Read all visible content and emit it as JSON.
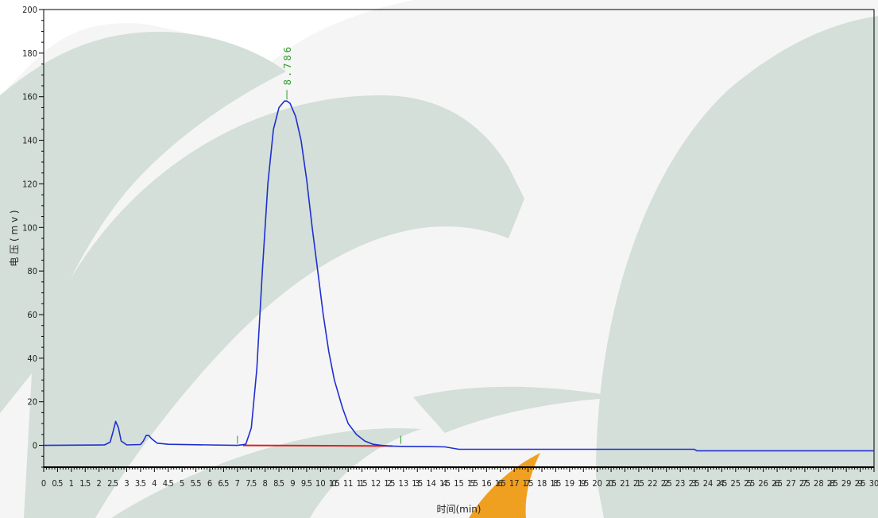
{
  "chart_data": {
    "type": "line",
    "title": "",
    "xlabel": "时间(min)",
    "ylabel": "电 压 ( m v )",
    "xlim": [
      0,
      30
    ],
    "ylim": [
      -10,
      200
    ],
    "x_ticks": [
      "0",
      "0.5",
      "1",
      "1.5",
      "2",
      "2.5",
      "3",
      "3.5",
      "4",
      "4.5",
      "5",
      "5.5",
      "6",
      "6.5",
      "7",
      "7.5",
      "8",
      "8.5",
      "9",
      "9.5",
      "10",
      "10.5",
      "11",
      "11.5",
      "12",
      "12.5",
      "13",
      "13.5",
      "14",
      "14.5",
      "15",
      "15.5",
      "16",
      "16.5",
      "17",
      "17.5",
      "18",
      "18.5",
      "19",
      "19.5",
      "20",
      "20.5",
      "21",
      "21.5",
      "22",
      "22.5",
      "23",
      "23.5",
      "24",
      "24.5",
      "25",
      "25.5",
      "26",
      "26.5",
      "27",
      "27.5",
      "28",
      "28.5",
      "29",
      "29.5",
      "30"
    ],
    "y_ticks": [
      "0",
      "20",
      "40",
      "60",
      "80",
      "100",
      "120",
      "140",
      "160",
      "180",
      "200"
    ],
    "series": [
      {
        "color": "#1f2fd0",
        "x": [
          0,
          2.2,
          2.4,
          2.5,
          2.6,
          2.7,
          2.8,
          3.0,
          3.5,
          3.6,
          3.7,
          3.8,
          3.9,
          4.1,
          4.5,
          7.0,
          7.3,
          7.5,
          7.7,
          7.9,
          8.1,
          8.3,
          8.5,
          8.7,
          8.786,
          8.9,
          9.1,
          9.3,
          9.5,
          9.7,
          9.9,
          10.1,
          10.3,
          10.5,
          10.8,
          11.0,
          11.3,
          11.6,
          11.9,
          12.2,
          12.5,
          13.0,
          14.0,
          14.5,
          15.0,
          18.0,
          20.0,
          23.5,
          23.6,
          23.8,
          24.0,
          27.0,
          30.0
        ],
        "y": [
          0,
          0.2,
          1.5,
          6,
          11,
          8,
          2,
          0.2,
          0.4,
          2,
          4.5,
          4.5,
          3,
          1,
          0.5,
          0,
          0.5,
          8,
          35,
          80,
          120,
          145,
          155,
          158,
          158,
          157,
          151,
          140,
          122,
          100,
          80,
          60,
          43,
          30,
          17,
          10,
          5,
          2,
          0.5,
          0,
          -0.3,
          -0.5,
          -0.6,
          -0.7,
          -1.8,
          -1.8,
          -1.8,
          -1.8,
          -2.5,
          -2.5,
          -2.5,
          -2.5,
          -2.5
        ]
      }
    ],
    "baseline": {
      "color": "#e02020",
      "x": [
        7.2,
        12.6
      ],
      "y": [
        0,
        -0.3
      ]
    },
    "peak_annotation": {
      "label": "8.786",
      "x": 8.786,
      "y": 158,
      "color": "#2a9d2a"
    },
    "integration_marks": [
      7.0,
      12.9
    ],
    "background_colors": {
      "leaf": "#d3dfd8",
      "accent": "#f0a020",
      "page": "#f5f5f5"
    }
  }
}
